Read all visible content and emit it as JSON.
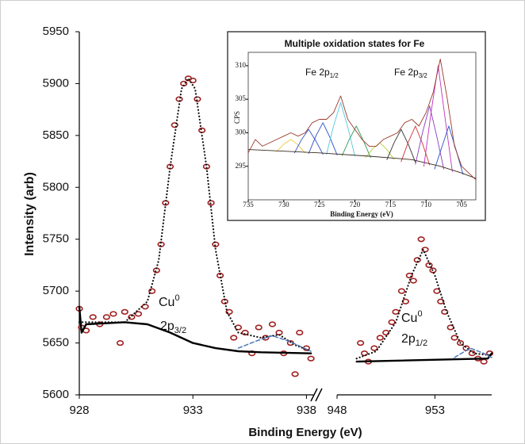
{
  "chart_data": [
    {
      "type": "scatter",
      "xlabel": "Binding Energy (eV)",
      "ylabel": "Intensity (arb)",
      "xlim": [
        928,
        938.3
      ],
      "xticks": [
        928,
        933,
        938
      ],
      "ylim": [
        5600,
        5950
      ],
      "yticks": [
        5600,
        5650,
        5700,
        5750,
        5800,
        5850,
        5900,
        5950
      ],
      "annotation": {
        "element": "Cu",
        "superscript": "0",
        "orbital": "2p",
        "subscript": "3/2"
      },
      "series": [
        {
          "style": "points",
          "color": "#a01e1e",
          "x": [
            928.0,
            928.1,
            928.3,
            928.6,
            928.9,
            929.2,
            929.5,
            929.8,
            930.0,
            930.3,
            930.6,
            930.9,
            931.2,
            931.4,
            931.6,
            931.8,
            932.0,
            932.2,
            932.4,
            932.6,
            932.8,
            933.0,
            933.2,
            933.4,
            933.6,
            933.8,
            934.0,
            934.2,
            934.4,
            934.6,
            934.8,
            935.0,
            935.3,
            935.6,
            935.9,
            936.2,
            936.5,
            936.8,
            937.0,
            937.3,
            937.5,
            937.7,
            938.0,
            938.2
          ],
          "values": [
            5683,
            5665,
            5662,
            5675,
            5668,
            5675,
            5678,
            5650,
            5680,
            5675,
            5678,
            5685,
            5700,
            5720,
            5745,
            5785,
            5820,
            5860,
            5885,
            5900,
            5905,
            5903,
            5885,
            5855,
            5820,
            5785,
            5745,
            5715,
            5690,
            5680,
            5655,
            5665,
            5660,
            5640,
            5665,
            5655,
            5668,
            5660,
            5640,
            5650,
            5620,
            5660,
            5645,
            5635
          ]
        },
        {
          "style": "dotted",
          "color": "#111111",
          "x": [
            928,
            930,
            931,
            931.5,
            932,
            932.5,
            932.8,
            933.1,
            933.6,
            934,
            934.5,
            935,
            936,
            936.8,
            937.5,
            938.2
          ],
          "values": [
            5670,
            5670,
            5690,
            5730,
            5820,
            5895,
            5905,
            5895,
            5820,
            5740,
            5680,
            5660,
            5655,
            5658,
            5648,
            5642
          ]
        },
        {
          "style": "solid",
          "color": "#000000",
          "x": [
            928,
            928.1,
            928.3,
            930,
            931,
            932,
            933,
            934,
            935,
            936,
            938.2
          ],
          "values": [
            5685,
            5660,
            5668,
            5670,
            5668,
            5660,
            5650,
            5645,
            5642,
            5641,
            5640
          ]
        },
        {
          "style": "dashed",
          "color": "#4a7ab8",
          "x": [
            935,
            935.8,
            936.5,
            937.2,
            938.2
          ],
          "values": [
            5645,
            5652,
            5657,
            5652,
            5642
          ]
        }
      ]
    },
    {
      "type": "scatter",
      "xlim": [
        948,
        955.9
      ],
      "xticks": [
        948,
        953
      ],
      "ylim": [
        5600,
        5950
      ],
      "annotation": {
        "element": "Cu",
        "superscript": "0",
        "orbital": "2p",
        "subscript": "1/2"
      },
      "series": [
        {
          "style": "points",
          "color": "#a01e1e",
          "x": [
            949.2,
            949.4,
            949.6,
            949.9,
            950.2,
            950.5,
            950.8,
            951.0,
            951.3,
            951.5,
            951.7,
            951.9,
            952.1,
            952.3,
            952.5,
            952.7,
            952.9,
            953.1,
            953.3,
            953.5,
            953.8,
            954.0,
            954.3,
            954.6,
            954.9,
            955.2,
            955.5,
            955.8
          ],
          "values": [
            5650,
            5640,
            5632,
            5645,
            5655,
            5660,
            5670,
            5680,
            5700,
            5690,
            5715,
            5710,
            5730,
            5750,
            5740,
            5725,
            5720,
            5700,
            5690,
            5680,
            5665,
            5655,
            5650,
            5645,
            5640,
            5635,
            5632,
            5640
          ]
        },
        {
          "style": "dotted",
          "color": "#111111",
          "x": [
            949,
            950,
            951,
            951.8,
            952.4,
            953,
            953.6,
            954.3,
            955,
            955.9
          ],
          "values": [
            5635,
            5642,
            5670,
            5715,
            5740,
            5715,
            5680,
            5650,
            5640,
            5638
          ]
        },
        {
          "style": "solid",
          "color": "#000000",
          "x": [
            949,
            955.7,
            955.9
          ],
          "values": [
            5632,
            5635,
            5640
          ]
        },
        {
          "style": "dashed",
          "color": "#4a7ab8",
          "x": [
            954,
            954.8,
            955.5,
            955.9
          ],
          "values": [
            5636,
            5645,
            5640,
            5636
          ]
        }
      ]
    },
    {
      "type": "line",
      "title": "Multiple oxidation states for Fe",
      "xlabel": "Binding Energy (eV)",
      "ylabel": "CPS",
      "xlim": [
        735,
        703
      ],
      "xticks": [
        735,
        730,
        725,
        720,
        715,
        710,
        705
      ],
      "ylim": [
        290,
        312
      ],
      "yticks": [
        295,
        300,
        305,
        310
      ],
      "annotations": [
        {
          "text": "Fe 2p",
          "subscript": "1/2"
        },
        {
          "text": "Fe 2p",
          "subscript": "3/2"
        }
      ],
      "series": [
        {
          "style": "solid",
          "color": "#eecb3a",
          "x": [
            731,
            730,
            729,
            728,
            727
          ],
          "values": [
            297.2,
            298.3,
            299,
            298.2,
            297
          ]
        },
        {
          "style": "solid",
          "color": "#3050d0",
          "x": [
            728.5,
            727.5,
            726.5,
            725.5,
            724.5
          ],
          "values": [
            297,
            299,
            300.5,
            298.8,
            296.8
          ]
        },
        {
          "style": "solid",
          "color": "#2a4fc8",
          "x": [
            726.5,
            725.5,
            724.5,
            723.5,
            722.5
          ],
          "values": [
            296.9,
            299.5,
            301.5,
            299.3,
            296.7
          ]
        },
        {
          "style": "solid",
          "color": "#55c8e0",
          "x": [
            724,
            723,
            722,
            721,
            720
          ],
          "values": [
            296.8,
            301,
            304.5,
            300.8,
            296.5
          ]
        },
        {
          "style": "solid",
          "color": "#2e9a55",
          "x": [
            721.8,
            720.8,
            719.8,
            718.8,
            717.8
          ],
          "values": [
            296.6,
            299,
            301,
            298.8,
            296.3
          ]
        },
        {
          "style": "solid",
          "color": "#b8d040",
          "x": [
            718.5,
            717.5,
            716.5,
            715.5,
            714.5
          ],
          "values": [
            296.3,
            297.6,
            298.5,
            297.5,
            296
          ]
        },
        {
          "style": "solid",
          "color": "#333333",
          "x": [
            715.5,
            714.5,
            713.5,
            712.5,
            711.5
          ],
          "values": [
            296,
            298.5,
            300.5,
            298.3,
            295.6
          ]
        },
        {
          "style": "solid",
          "color": "#d03030",
          "x": [
            713.5,
            712.5,
            711.5,
            710.5,
            709.5
          ],
          "values": [
            295.7,
            298.6,
            301,
            298.4,
            295.2
          ]
        },
        {
          "style": "solid",
          "color": "#8a3ac0",
          "x": [
            711.5,
            710.5,
            709.5,
            708.5,
            707.5
          ],
          "values": [
            295.3,
            300,
            304,
            299.5,
            294.6
          ]
        },
        {
          "style": "solid",
          "color": "#c030c0",
          "x": [
            710.3,
            709.3,
            708.3,
            707.3,
            706.3
          ],
          "values": [
            295,
            303,
            310,
            302,
            294.2
          ]
        },
        {
          "style": "solid",
          "color": "#2a4fc8",
          "x": [
            708.8,
            707.8,
            706.8,
            705.8,
            704.8
          ],
          "values": [
            294.6,
            297.8,
            301,
            297.5,
            293.8
          ]
        },
        {
          "style": "solid",
          "color": "#3a2a20",
          "x": [
            735,
            725,
            718,
            712,
            708,
            705,
            703
          ],
          "values": [
            297.5,
            297,
            296.5,
            296,
            295,
            294,
            293.2
          ]
        },
        {
          "style": "solid",
          "color": "#9a3a2a",
          "x": [
            735,
            734,
            733,
            732,
            731,
            730,
            729,
            728,
            727,
            726,
            725,
            724,
            723,
            722,
            721,
            720,
            719,
            718,
            717,
            716,
            715,
            714,
            713,
            712,
            711,
            710,
            709,
            708,
            707,
            706,
            705,
            704,
            703
          ],
          "values": [
            297,
            299,
            298,
            298.5,
            299,
            299.5,
            300,
            299.5,
            300,
            301.5,
            302,
            302,
            303,
            305.5,
            302,
            300.5,
            299,
            298,
            298,
            299,
            299.5,
            300,
            301.5,
            302,
            301,
            303,
            306,
            311,
            305,
            298,
            295,
            294,
            293
          ]
        }
      ]
    }
  ]
}
